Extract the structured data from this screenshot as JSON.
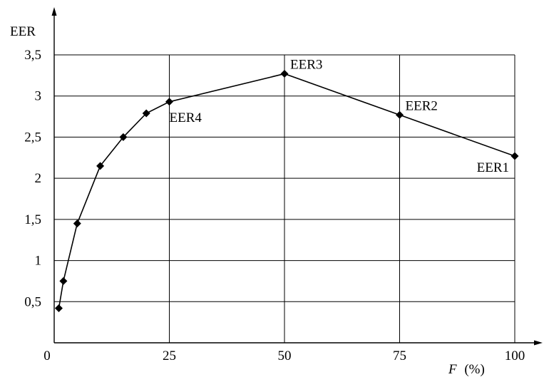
{
  "chart_data": {
    "type": "line",
    "title": "",
    "ylabel": "EER",
    "xlabel_var": "F",
    "xlabel_unit": "(%)",
    "xlim": [
      0,
      100
    ],
    "ylim": [
      0,
      3.5
    ],
    "x_ticks": [
      0,
      25,
      50,
      75,
      100
    ],
    "x_tick_labels": [
      "0",
      "25",
      "50",
      "75",
      "100"
    ],
    "y_ticks": [
      0.5,
      1,
      1.5,
      2,
      2.5,
      3,
      3.5
    ],
    "y_tick_labels": [
      "0,5",
      "1",
      "1,5",
      "2",
      "2,5",
      "3",
      "3,5"
    ],
    "grid": true,
    "series": [
      {
        "x": [
          1,
          2,
          5,
          10,
          15,
          20,
          25,
          50,
          75,
          100
        ],
        "y": [
          0.42,
          0.75,
          1.45,
          2.15,
          2.5,
          2.79,
          2.93,
          3.27,
          2.77,
          2.27
        ]
      }
    ],
    "annotations": [
      {
        "text": "EER4",
        "x": 25,
        "y": 2.93,
        "pos": "below-right"
      },
      {
        "text": "EER3",
        "x": 50,
        "y": 3.27,
        "pos": "above-right"
      },
      {
        "text": "EER2",
        "x": 75,
        "y": 2.77,
        "pos": "above-right"
      },
      {
        "text": "EER1",
        "x": 100,
        "y": 2.27,
        "pos": "below-left"
      }
    ]
  }
}
